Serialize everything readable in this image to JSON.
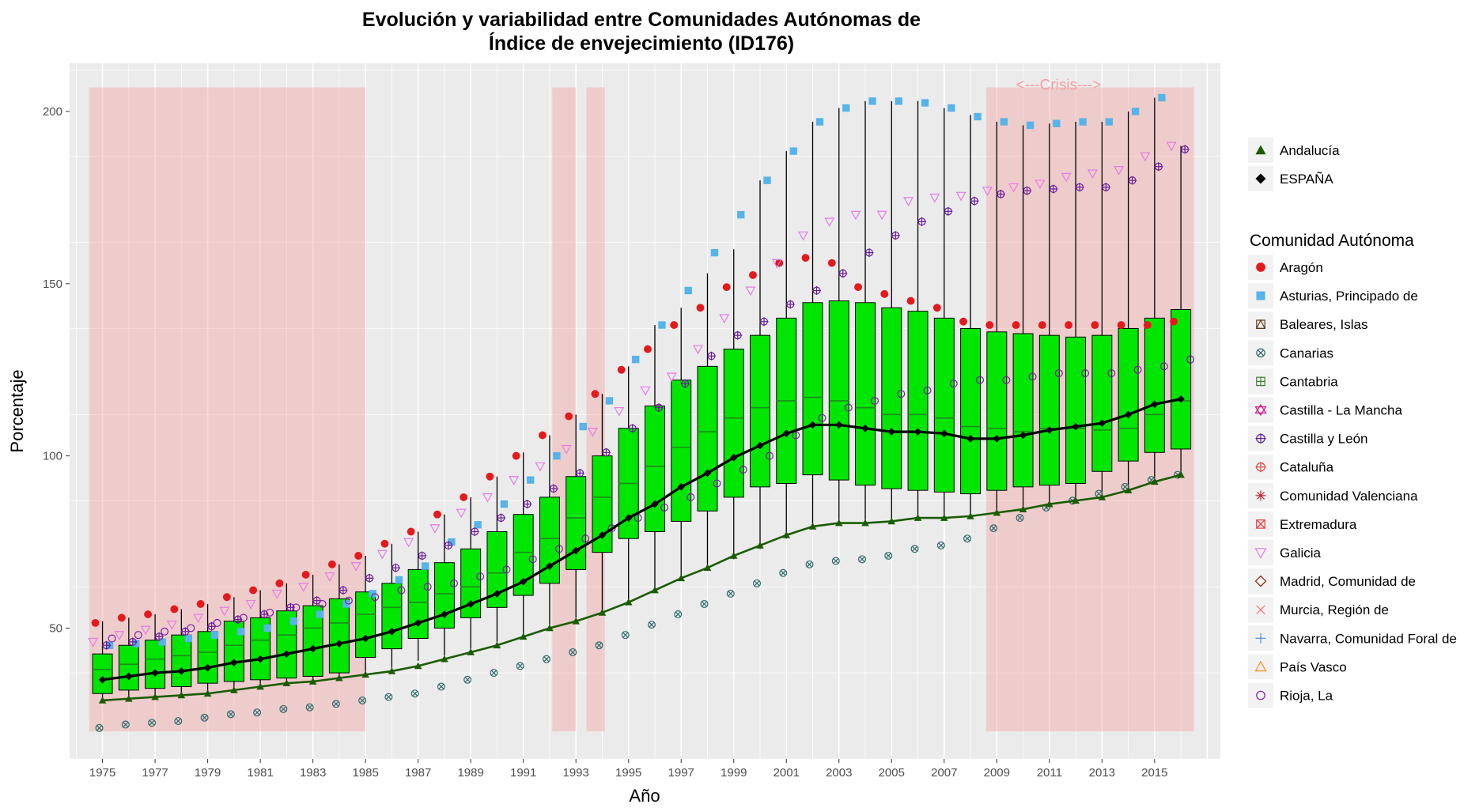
{
  "chart_data": {
    "type": "boxplot",
    "title_line1": "Evolución y variabilidad entre Comunidades Autónomas de",
    "title_line2": "Índice de envejecimiento (ID176)",
    "xlabel": "Año",
    "ylabel": "Porcentaje",
    "x_ticks": [
      "1975",
      "1977",
      "1979",
      "1981",
      "1983",
      "1985",
      "1987",
      "1989",
      "1991",
      "1993",
      "1995",
      "1997",
      "1999",
      "2001",
      "2003",
      "2005",
      "2007",
      "2009",
      "2011",
      "2013",
      "2015"
    ],
    "y_ticks": [
      "50",
      "100",
      "150",
      "200"
    ],
    "xlim": [
      1973.75,
      2017.5
    ],
    "ylim": [
      12,
      214
    ],
    "grid": true,
    "legend_position": "right",
    "crisis_label": "<---Crisis--->",
    "shaded_periods": [
      [
        1974.5,
        1985
      ],
      [
        1992.1,
        1993
      ],
      [
        1993.4,
        1994.1
      ],
      [
        2008.6,
        2016.5
      ]
    ],
    "shaded_y": [
      20,
      207
    ],
    "years": [
      1975,
      1976,
      1977,
      1978,
      1979,
      1980,
      1981,
      1982,
      1983,
      1984,
      1985,
      1986,
      1987,
      1988,
      1989,
      1990,
      1991,
      1992,
      1993,
      1994,
      1995,
      1996,
      1997,
      1998,
      1999,
      2000,
      2001,
      2002,
      2003,
      2004,
      2005,
      2006,
      2007,
      2008,
      2009,
      2010,
      2011,
      2012,
      2013,
      2014,
      2015,
      2016
    ],
    "boxes": {
      "q1": [
        31,
        32,
        32.5,
        33,
        34,
        34.5,
        35,
        35.5,
        36,
        37,
        41.5,
        44,
        47,
        50,
        53,
        56,
        59.5,
        63,
        67,
        72,
        76,
        78,
        81,
        84,
        88,
        91,
        92,
        94.5,
        93,
        91.5,
        90.5,
        90,
        89.5,
        89,
        90,
        91,
        91.5,
        92,
        95.5,
        98.5,
        101,
        102
      ],
      "median": [
        38,
        39.5,
        41,
        42,
        43,
        45,
        46.5,
        48,
        50,
        51.5,
        54,
        56,
        57.5,
        60,
        62,
        66,
        72,
        76,
        82,
        88,
        92,
        97,
        102.5,
        107,
        111,
        114,
        116,
        117,
        116,
        114,
        112,
        112,
        111,
        108.5,
        108,
        107,
        108,
        108,
        107.5,
        108,
        112,
        116
      ],
      "q3": [
        42.5,
        45,
        46.5,
        48,
        49,
        52,
        53,
        55,
        56.5,
        58.5,
        60.5,
        63,
        67,
        69,
        73,
        78,
        83,
        88,
        94,
        100,
        108,
        114.5,
        122,
        126,
        131,
        135,
        140,
        144.5,
        145,
        144.5,
        143,
        142,
        140,
        137,
        136,
        135.5,
        135,
        134.5,
        135,
        137,
        140,
        142.5
      ],
      "lo": [
        29.5,
        30,
        30,
        30.5,
        31,
        32,
        33,
        34,
        34.5,
        35.5,
        37,
        38.5,
        40.5,
        42,
        44,
        46,
        48,
        51,
        53,
        55,
        58,
        61,
        64,
        67,
        70,
        73,
        76,
        79,
        80,
        81,
        81,
        82,
        82,
        82,
        83,
        84,
        86,
        87,
        88,
        90,
        92,
        94.5
      ],
      "hi": [
        52,
        53,
        54,
        55.5,
        57,
        59,
        61,
        63,
        65.5,
        68.5,
        71,
        74.5,
        78,
        83,
        88,
        94,
        101,
        106,
        112,
        118,
        126,
        138,
        143,
        153,
        160,
        180,
        188.5,
        197,
        201,
        203,
        203,
        203,
        201,
        199,
        197,
        196,
        196.5,
        197,
        197,
        200,
        204,
        190
      ]
    },
    "series": [
      {
        "name": "Andalucía",
        "values": [
          29,
          29.5,
          30,
          30.5,
          31,
          32,
          33,
          34,
          34.5,
          35.5,
          36.5,
          37.5,
          39,
          41,
          43,
          45,
          47.5,
          50,
          52,
          54.5,
          57.5,
          61,
          64.5,
          67.5,
          71,
          74,
          77,
          79.5,
          80.5,
          80.5,
          81,
          82,
          82,
          82.5,
          83.5,
          84.5,
          86,
          87,
          88,
          90,
          92.5,
          94.5
        ]
      },
      {
        "name": "ESPAÑA",
        "values": [
          35,
          36,
          37,
          37.5,
          38.5,
          40,
          41,
          42.5,
          44,
          45.5,
          47,
          49,
          51.5,
          54,
          57,
          60,
          63.5,
          68,
          72.5,
          77,
          82,
          86,
          91,
          95,
          99.5,
          103,
          106.5,
          109,
          109,
          108,
          107,
          107,
          106.5,
          105,
          105,
          106,
          107.5,
          108.5,
          109.5,
          112,
          115,
          116.5
        ]
      }
    ],
    "legend_top": [
      {
        "name": "Andalucía",
        "shape": "triangle",
        "color": "#1a5c00"
      },
      {
        "name": "ESPAÑA",
        "shape": "diamond",
        "color": "#000000"
      }
    ],
    "legend_ca_title": "Comunidad Autónoma",
    "legend_ca": [
      {
        "name": "Aragón",
        "shape": "circle-filled",
        "color": "#e31a1c"
      },
      {
        "name": "Asturias, Principado de",
        "shape": "square-filled",
        "color": "#56b4e9"
      },
      {
        "name": "Baleares, Islas",
        "shape": "square-triangle",
        "color": "#5c3a1a"
      },
      {
        "name": "Canarias",
        "shape": "circle-x",
        "color": "#2e6b6b"
      },
      {
        "name": "Cantabria",
        "shape": "square-plus",
        "color": "#3a7d2c"
      },
      {
        "name": "Castilla - La Mancha",
        "shape": "star-david",
        "color": "#d4168c"
      },
      {
        "name": "Castilla y León",
        "shape": "circle-plus",
        "color": "#6a1b9a"
      },
      {
        "name": "Cataluña",
        "shape": "circle-plus",
        "color": "#e8453c"
      },
      {
        "name": "Comunidad Valenciana",
        "shape": "asterisk",
        "color": "#c62828"
      },
      {
        "name": "Extremadura",
        "shape": "square-x",
        "color": "#e53935"
      },
      {
        "name": "Galicia",
        "shape": "triangle-down",
        "color": "#e57be5"
      },
      {
        "name": "Madrid, Comunidad de",
        "shape": "diamond-open",
        "color": "#8b2500"
      },
      {
        "name": "Murcia, Región de",
        "shape": "x",
        "color": "#ff6b6b"
      },
      {
        "name": "Navarra, Comunidad Foral de",
        "shape": "plus",
        "color": "#4a90e2"
      },
      {
        "name": "País Vasco",
        "shape": "triangle-open",
        "color": "#ff8c1a"
      },
      {
        "name": "Rioja, La",
        "shape": "circle-open",
        "color": "#7b1fa2"
      }
    ],
    "ca_points": {
      "Aragón": [
        51.5,
        53,
        54,
        55.5,
        57,
        59,
        61,
        63,
        65.5,
        68.5,
        71,
        74.5,
        78,
        83,
        88,
        94,
        100,
        106,
        111.5,
        118,
        125,
        131,
        138,
        143,
        149,
        152.5,
        156,
        157.5,
        156,
        149,
        147,
        145,
        143,
        139,
        138,
        138,
        138,
        138,
        138,
        138,
        138,
        139
      ],
      "Asturias, Principado de": [
        45,
        45.5,
        46,
        47,
        48,
        49,
        50,
        52,
        54,
        57,
        60,
        64,
        68,
        75,
        80,
        86,
        93,
        100,
        108.5,
        116,
        128,
        138,
        148,
        159,
        170,
        180,
        188.5,
        197,
        201,
        203,
        203,
        202.5,
        201,
        198.5,
        197,
        196,
        196.5,
        197,
        197,
        200,
        204,
        null
      ],
      "Canarias": [
        21,
        22,
        22.5,
        23,
        24,
        25,
        25.5,
        26.5,
        27,
        28,
        29,
        30,
        31,
        33,
        35,
        37,
        39,
        41,
        43,
        45,
        48,
        51,
        54,
        57,
        60,
        63,
        66,
        68.5,
        69.5,
        70,
        71,
        73,
        74,
        76,
        79,
        82,
        85,
        87,
        89,
        91,
        93,
        94.5
      ],
      "Castilla y León": [
        45,
        46,
        47.5,
        49,
        50.5,
        52.5,
        54,
        56,
        58,
        61,
        64.5,
        67.5,
        71,
        74,
        78,
        82,
        86,
        90.5,
        95,
        101,
        108,
        114,
        121,
        129,
        135,
        139,
        144,
        148,
        153,
        159,
        164,
        168,
        171,
        174,
        176,
        177,
        177.5,
        178,
        178,
        180,
        184,
        189
      ],
      "Galicia": [
        46,
        48,
        49.5,
        51,
        53,
        55,
        57,
        60,
        62,
        65,
        68,
        71.5,
        75,
        79,
        83.5,
        88,
        93,
        97,
        102,
        107,
        113,
        119,
        123,
        131,
        140,
        148,
        156,
        164,
        168,
        170,
        170,
        174,
        175,
        175.5,
        177,
        178,
        179,
        181,
        182,
        183,
        187,
        190
      ],
      "Rioja, La": [
        47,
        48,
        49,
        50,
        51.5,
        53,
        54.5,
        56,
        57,
        58,
        59,
        61,
        62,
        63,
        65,
        67,
        70,
        73,
        76,
        79,
        82,
        85,
        88,
        92,
        96,
        100,
        106,
        111,
        114,
        116,
        118,
        119,
        121,
        122,
        122,
        123,
        124,
        124,
        124,
        125,
        126,
        128
      ]
    }
  }
}
